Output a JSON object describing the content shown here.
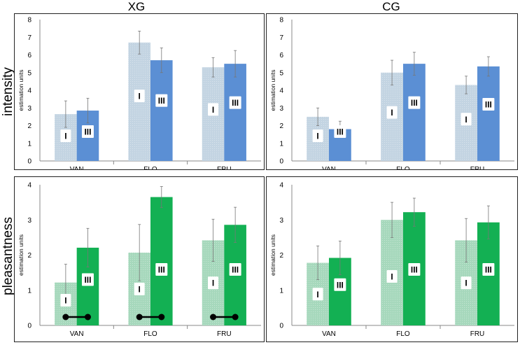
{
  "column_titles": [
    "XG",
    "CG"
  ],
  "row_titles": [
    "intensity",
    "pleasantness"
  ],
  "ylabel": "estimation units",
  "legend_markers": [
    "I",
    "III"
  ],
  "colors": {
    "intensity_I": "#c3d4e2",
    "intensity_III": "#5b8fd4",
    "pleasantness_I": "#a6d8bc",
    "pleasantness_III": "#13b053",
    "axis": "#888888",
    "significance": "#000000"
  },
  "chart_data": [
    {
      "type": "bar",
      "group": "XG",
      "measure": "intensity",
      "categories": [
        "VAN",
        "FLO",
        "FRU"
      ],
      "series": [
        {
          "name": "I",
          "values": [
            2.65,
            6.7,
            5.3
          ],
          "errors": [
            0.75,
            0.65,
            0.55
          ]
        },
        {
          "name": "III",
          "values": [
            2.85,
            5.7,
            5.5
          ],
          "errors": [
            0.7,
            0.7,
            0.75
          ]
        }
      ],
      "yticks": [
        0,
        1,
        2,
        3,
        4,
        5,
        6,
        7,
        8
      ],
      "ylim": [
        0,
        8
      ],
      "ylabel": "estimation units",
      "significance": []
    },
    {
      "type": "bar",
      "group": "CG",
      "measure": "intensity",
      "categories": [
        "VAN",
        "FLO",
        "FRU"
      ],
      "series": [
        {
          "name": "I",
          "values": [
            2.5,
            5.0,
            4.3
          ],
          "errors": [
            0.5,
            0.7,
            0.5
          ]
        },
        {
          "name": "III",
          "values": [
            1.8,
            5.5,
            5.35
          ],
          "errors": [
            0.45,
            0.65,
            0.55
          ]
        }
      ],
      "yticks": [
        0,
        1,
        2,
        3,
        4,
        5,
        6,
        7,
        8
      ],
      "ylim": [
        0,
        8
      ],
      "ylabel": "estimation units",
      "significance": []
    },
    {
      "type": "bar",
      "group": "XG",
      "measure": "pleasantness",
      "categories": [
        "VAN",
        "FLO",
        "FRU"
      ],
      "series": [
        {
          "name": "I",
          "values": [
            1.22,
            2.07,
            2.42
          ],
          "errors": [
            0.52,
            0.8,
            0.6
          ]
        },
        {
          "name": "III",
          "values": [
            2.21,
            3.65,
            2.86
          ],
          "errors": [
            0.55,
            0.3,
            0.5
          ]
        }
      ],
      "yticks": [
        0,
        1,
        2,
        3,
        4
      ],
      "ylim": [
        0,
        4
      ],
      "ylabel": "estimation units",
      "significance": [
        "VAN",
        "FLO",
        "FRU"
      ]
    },
    {
      "type": "bar",
      "group": "CG",
      "measure": "pleasantness",
      "categories": [
        "VAN",
        "FLO",
        "FRU"
      ],
      "series": [
        {
          "name": "I",
          "values": [
            1.78,
            3.0,
            2.42
          ],
          "errors": [
            0.48,
            0.5,
            0.62
          ]
        },
        {
          "name": "III",
          "values": [
            1.92,
            3.22,
            2.93
          ],
          "errors": [
            0.48,
            0.4,
            0.47
          ]
        }
      ],
      "yticks": [
        0,
        1,
        2,
        3,
        4
      ],
      "ylim": [
        0,
        4
      ],
      "ylabel": "estimation units",
      "significance": []
    }
  ]
}
